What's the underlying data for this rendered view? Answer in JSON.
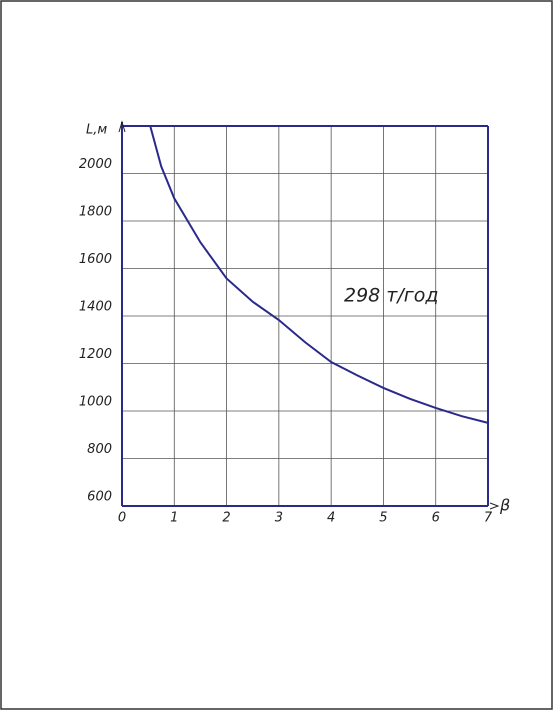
{
  "chart_data": {
    "type": "line",
    "x": [
      0.54,
      0.75,
      1,
      1.5,
      2,
      2.5,
      3,
      3.5,
      4,
      4.5,
      5,
      5.5,
      6,
      6.5,
      7
    ],
    "series": [
      {
        "name": "298 т/год",
        "color": "#2a2a8c",
        "values": [
          2200,
          2030,
          1895,
          1710,
          1558,
          1460,
          1383,
          1290,
          1206,
          1150,
          1097,
          1052,
          1013,
          978,
          950
        ]
      }
    ],
    "xlim": [
      0,
      7
    ],
    "ylim": [
      600,
      2200
    ],
    "xticks": [
      0,
      1,
      2,
      3,
      4,
      5,
      6,
      7
    ],
    "yticks": [
      600,
      800,
      1000,
      1200,
      1400,
      1600,
      1800,
      2000
    ],
    "ylabel": "L,м",
    "xlabel": "β",
    "grid": true
  }
}
